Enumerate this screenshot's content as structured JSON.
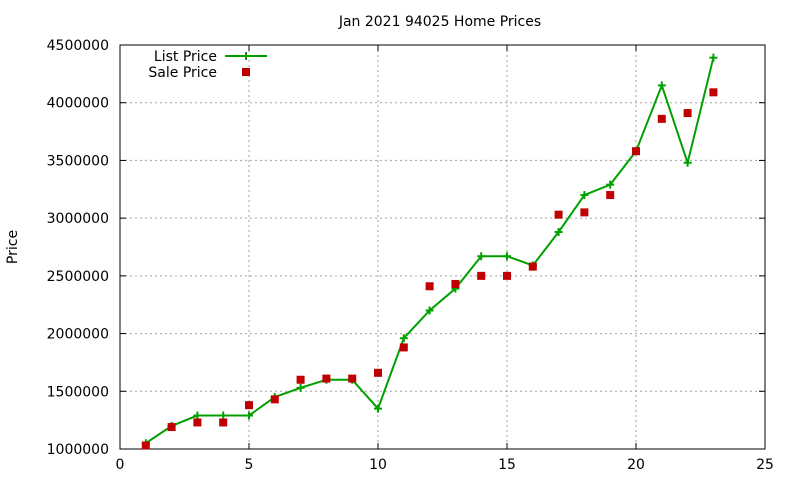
{
  "chart_data": {
    "type": "line",
    "title": "Jan 2021 94025 Home Prices",
    "xlabel": "",
    "ylabel": "Price",
    "xlim": [
      0,
      25
    ],
    "ylim": [
      1000000,
      4500000
    ],
    "x_ticks": [
      "0",
      "5",
      "10",
      "15",
      "20",
      "25"
    ],
    "y_ticks": [
      "1000000",
      "1500000",
      "2000000",
      "2500000",
      "3000000",
      "3500000",
      "4000000",
      "4500000"
    ],
    "grid": true,
    "legend_position": "top-left",
    "series": [
      {
        "name": "List Price",
        "style": "line-plus",
        "color": "#00a000",
        "x": [
          1,
          2,
          3,
          4,
          5,
          6,
          7,
          8,
          9,
          10,
          11,
          12,
          13,
          14,
          15,
          16,
          17,
          18,
          19,
          20,
          21,
          22,
          23
        ],
        "values": [
          1050000,
          1200000,
          1290000,
          1290000,
          1290000,
          1450000,
          1530000,
          1600000,
          1600000,
          1350000,
          1960000,
          2200000,
          2390000,
          2670000,
          2670000,
          2590000,
          2880000,
          3200000,
          3290000,
          3580000,
          4150000,
          3480000,
          4390000
        ]
      },
      {
        "name": "Sale Price",
        "style": "square-marker",
        "color": "#c00000",
        "x": [
          1,
          2,
          3,
          4,
          5,
          6,
          7,
          8,
          9,
          10,
          11,
          12,
          13,
          14,
          15,
          16,
          17,
          18,
          19,
          20,
          21,
          22,
          23
        ],
        "values": [
          1030000,
          1190000,
          1230000,
          1230000,
          1380000,
          1430000,
          1600000,
          1610000,
          1610000,
          1660000,
          1880000,
          2410000,
          2430000,
          2500000,
          2500000,
          2580000,
          3030000,
          3050000,
          3200000,
          3580000,
          3860000,
          3910000,
          4090000
        ]
      }
    ]
  }
}
